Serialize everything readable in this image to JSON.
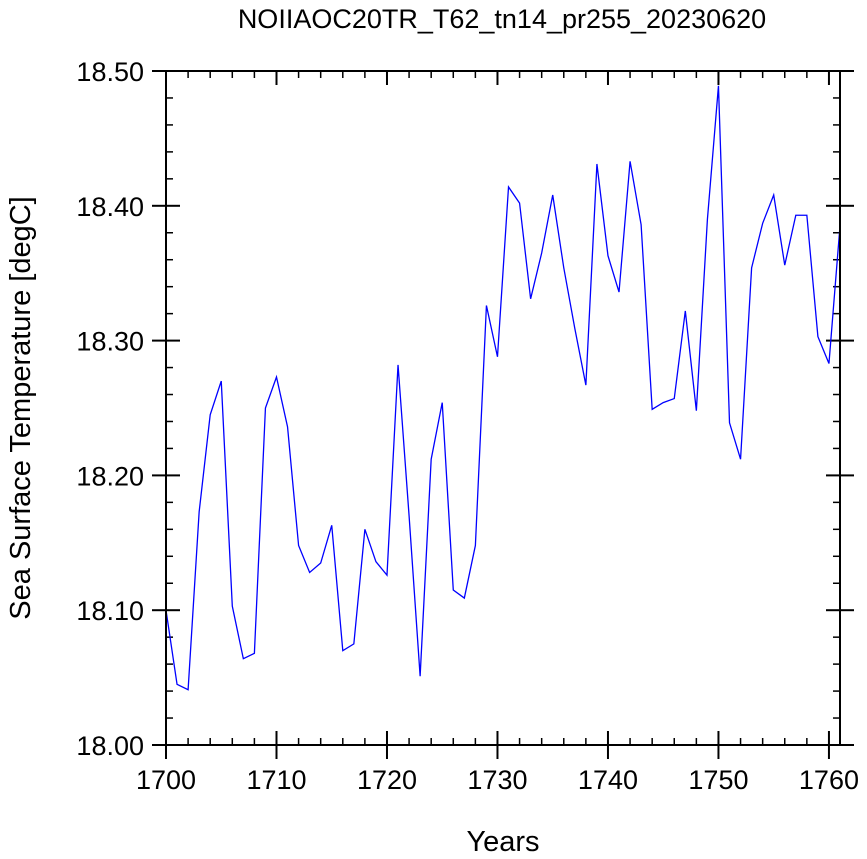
{
  "chart_data": {
    "type": "line",
    "title": "NOIIAOC20TR_T62_tn14_pr255_20230620",
    "xlabel": "Years",
    "ylabel": "Sea Surface Temperature [degC]",
    "xlim": [
      1700,
      1761
    ],
    "ylim": [
      18.0,
      18.5
    ],
    "x_ticks": [
      "1700",
      "1710",
      "1720",
      "1730",
      "1740",
      "1750",
      "1760"
    ],
    "y_ticks": [
      "18.00",
      "18.10",
      "18.20",
      "18.30",
      "18.40",
      "18.50"
    ],
    "line_color": "#0000ff",
    "grid": false,
    "series": [
      {
        "x": [
          1700,
          1701,
          1702,
          1703,
          1704,
          1705,
          1706,
          1707,
          1708,
          1709,
          1710,
          1711,
          1712,
          1713,
          1714,
          1715,
          1716,
          1717,
          1718,
          1719,
          1720,
          1721,
          1722,
          1723,
          1724,
          1725,
          1726,
          1727,
          1728,
          1729,
          1730,
          1731,
          1732,
          1733,
          1734,
          1735,
          1736,
          1737,
          1738,
          1739,
          1740,
          1741,
          1742,
          1743,
          1744,
          1745,
          1746,
          1747,
          1748,
          1749,
          1750,
          1751,
          1752,
          1753,
          1754,
          1755,
          1756,
          1757,
          1758,
          1759,
          1760,
          1761
        ],
        "values": [
          18.1,
          18.045,
          18.041,
          18.173,
          18.245,
          18.27,
          18.103,
          18.064,
          18.068,
          18.25,
          18.273,
          18.236,
          18.148,
          18.128,
          18.135,
          18.163,
          18.07,
          18.075,
          18.16,
          18.136,
          18.126,
          18.282,
          18.17,
          18.051,
          18.212,
          18.254,
          18.115,
          18.109,
          18.148,
          18.326,
          18.288,
          18.414,
          18.402,
          18.331,
          18.365,
          18.408,
          18.354,
          18.309,
          18.267,
          18.431,
          18.363,
          18.336,
          18.433,
          18.386,
          18.249,
          18.254,
          18.257,
          18.322,
          18.248,
          18.39,
          18.489,
          18.239,
          18.212,
          18.354,
          18.387,
          18.408,
          18.356,
          18.393,
          18.393,
          18.303,
          18.283,
          18.385
        ]
      }
    ]
  }
}
